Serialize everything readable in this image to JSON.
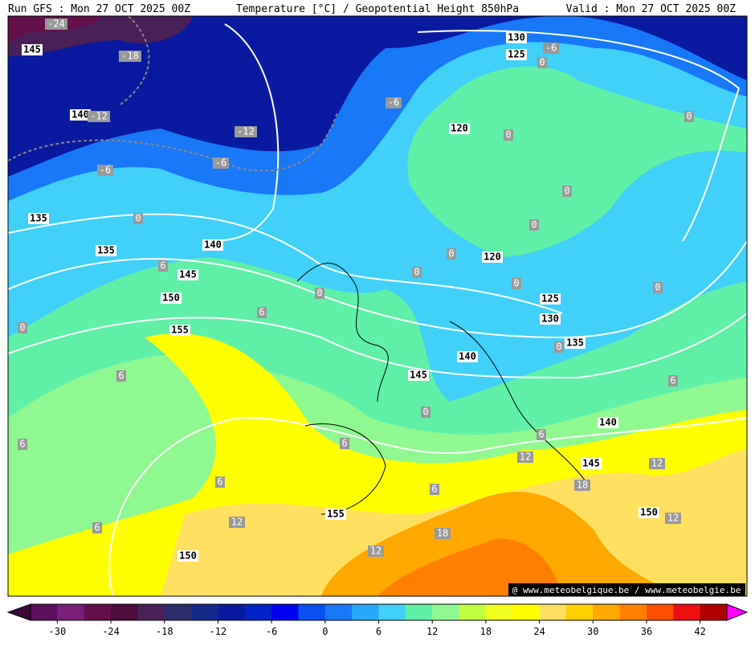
{
  "header": {
    "run": "Run GFS : Mon 27 OCT 2025 00Z",
    "title": "Temperature [°C] / Geopotential Height 850hPa",
    "valid": "Valid : Mon 27 OCT 2025 00Z"
  },
  "map": {
    "height_labels": [
      145,
      140,
      135,
      135,
      140,
      145,
      150,
      155,
      130,
      125,
      120,
      120,
      125,
      130,
      135,
      140,
      145,
      140,
      145,
      150,
      155,
      150
    ],
    "temperature_labels": [
      -24,
      -18,
      -12,
      -12,
      -6,
      -6,
      -6,
      -6,
      0,
      0,
      0,
      0,
      0,
      0,
      0,
      0,
      0,
      0,
      0,
      0,
      0,
      0,
      6,
      6,
      6,
      6,
      6,
      6,
      6,
      6,
      6,
      6,
      12,
      12,
      12,
      12,
      12,
      18,
      18
    ],
    "watermark": "@ www.meteobelgique.be / www.meteobelgie.be"
  },
  "colorbar": {
    "ticks": [
      -30,
      -24,
      -18,
      -12,
      -6,
      0,
      6,
      12,
      18,
      24,
      30,
      36,
      42
    ],
    "range": [
      -33,
      45
    ],
    "colors": [
      "#5c0f5c",
      "#7a1f7a",
      "#64104a",
      "#4e0d3c",
      "#4a2058",
      "#2c2c6c",
      "#142a88",
      "#0a1aa0",
      "#0022c8",
      "#0000f0",
      "#0a50f0",
      "#1878f8",
      "#28a8f8",
      "#40d0f8",
      "#60f0a8",
      "#90f890",
      "#c0ff40",
      "#f0ff20",
      "#ffff00",
      "#ffe060",
      "#ffd000",
      "#ffa800",
      "#ff8000",
      "#ff5000",
      "#ee1010",
      "#b00000"
    ],
    "under_color": "#3a0a3a",
    "over_color": "#ff00ff"
  }
}
